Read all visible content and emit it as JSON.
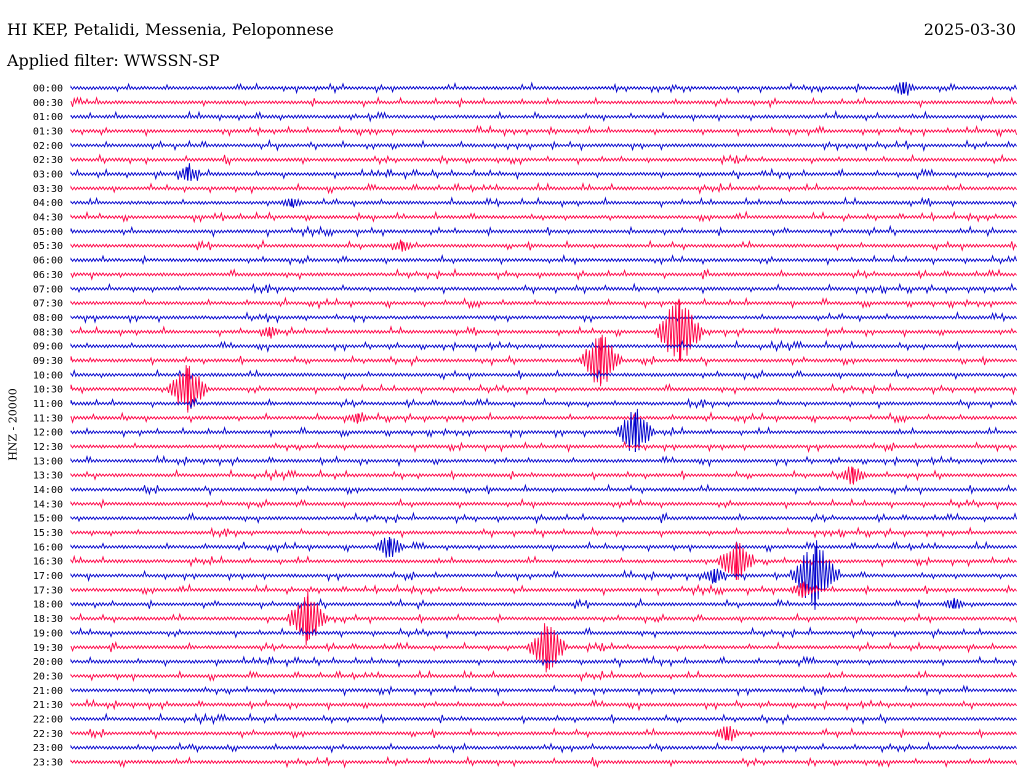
{
  "header": {
    "station": "HI KEP, Petalidi, Messenia, Peloponnese",
    "date": "2025-03-30",
    "filter": "Applied filter: WWSSN-SP"
  },
  "axis": {
    "ylabel": "HNZ - 20000"
  },
  "colors": {
    "even_trace": "#0000cc",
    "odd_trace": "#ff0044"
  },
  "chart_data": {
    "type": "line",
    "title": "HI KEP, Petalidi, Messenia, Peloponnese",
    "ylabel": "HNZ - 20000",
    "rows": [
      "00:00",
      "00:30",
      "01:00",
      "01:30",
      "02:00",
      "02:30",
      "03:00",
      "03:30",
      "04:00",
      "04:30",
      "05:00",
      "05:30",
      "06:00",
      "06:30",
      "07:00",
      "07:30",
      "08:00",
      "08:30",
      "09:00",
      "09:30",
      "10:00",
      "10:30",
      "11:00",
      "11:30",
      "12:00",
      "12:30",
      "13:00",
      "13:30",
      "14:00",
      "14:30",
      "15:00",
      "15:30",
      "16:00",
      "16:30",
      "17:00",
      "17:30",
      "18:00",
      "18:30",
      "19:00",
      "19:30",
      "20:00",
      "20:30",
      "21:00",
      "21:30",
      "22:00",
      "22:30",
      "23:00",
      "23:30"
    ],
    "x_range_minutes": [
      0,
      30
    ],
    "events": [
      {
        "row": "00:00",
        "minute": 26.4,
        "amp": 0.5
      },
      {
        "row": "03:00",
        "minute": 3.7,
        "amp": 0.6
      },
      {
        "row": "04:00",
        "minute": 7.0,
        "amp": 0.35
      },
      {
        "row": "05:30",
        "minute": 10.5,
        "amp": 0.4
      },
      {
        "row": "08:30",
        "minute": 19.3,
        "amp": 2.6
      },
      {
        "row": "08:30",
        "minute": 6.3,
        "amp": 0.35
      },
      {
        "row": "09:30",
        "minute": 16.8,
        "amp": 2.1
      },
      {
        "row": "10:30",
        "minute": 3.7,
        "amp": 1.9
      },
      {
        "row": "11:30",
        "minute": 9.1,
        "amp": 0.4
      },
      {
        "row": "12:00",
        "minute": 17.9,
        "amp": 1.8
      },
      {
        "row": "13:30",
        "minute": 24.8,
        "amp": 0.7
      },
      {
        "row": "16:00",
        "minute": 10.1,
        "amp": 0.9
      },
      {
        "row": "16:30",
        "minute": 21.1,
        "amp": 1.7
      },
      {
        "row": "17:00",
        "minute": 20.4,
        "amp": 0.6
      },
      {
        "row": "17:00",
        "minute": 23.6,
        "amp": 2.6
      },
      {
        "row": "17:30",
        "minute": 23.2,
        "amp": 0.6
      },
      {
        "row": "18:00",
        "minute": 28.0,
        "amp": 0.4
      },
      {
        "row": "18:30",
        "minute": 7.5,
        "amp": 2.0
      },
      {
        "row": "19:30",
        "minute": 15.1,
        "amp": 1.9
      },
      {
        "row": "22:30",
        "minute": 20.8,
        "amp": 0.6
      }
    ]
  }
}
